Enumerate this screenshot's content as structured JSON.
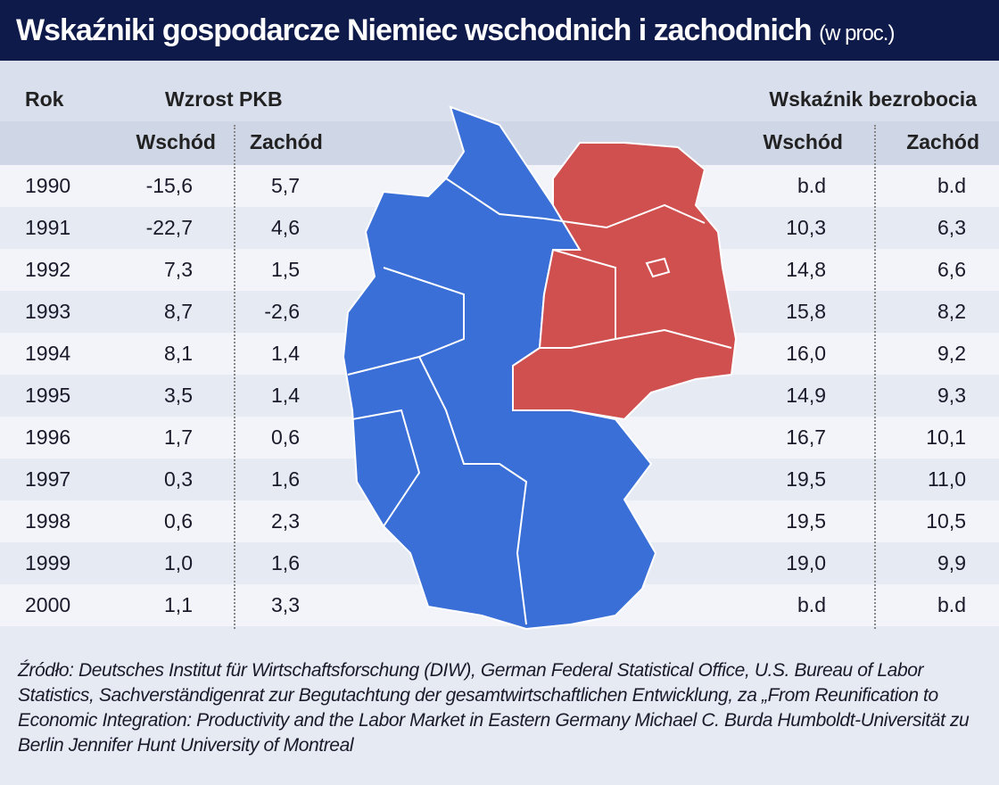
{
  "header": {
    "title": "Wskaźniki gospodarcze Niemiec wschodnich i zachodnich",
    "unit": "(w proc.)"
  },
  "table": {
    "col_year": "Rok",
    "group_gdp": "Wzrost PKB",
    "group_unemployment": "Wskaźnik bezrobocia",
    "sub_columns": [
      "Wschód",
      "Zachód",
      "Wschód",
      "Zachód"
    ],
    "rows": [
      [
        "1990",
        "-15,6",
        "5,7",
        "b.d",
        "b.d"
      ],
      [
        "1991",
        "-22,7",
        "4,6",
        "10,3",
        "6,3"
      ],
      [
        "1992",
        "7,3",
        "1,5",
        "14,8",
        "6,6"
      ],
      [
        "1993",
        "8,7",
        "-2,6",
        "15,8",
        "8,2"
      ],
      [
        "1994",
        "8,1",
        "1,4",
        "16,0",
        "9,2"
      ],
      [
        "1995",
        "3,5",
        "1,4",
        "14,9",
        "9,3"
      ],
      [
        "1996",
        "1,7",
        "0,6",
        "16,7",
        "10,1"
      ],
      [
        "1997",
        "0,3",
        "1,6",
        "19,5",
        "11,0"
      ],
      [
        "1998",
        "0,6",
        "2,3",
        "19,5",
        "10,5"
      ],
      [
        "1999",
        "1,0",
        "1,6",
        "19,0",
        "9,9"
      ],
      [
        "2000",
        "1,1",
        "3,3",
        "b.d",
        "b.d"
      ]
    ]
  },
  "source": "Źródło: Deutsches Institut für Wirtschaftsforschung (DIW), German Federal Statistical Office, U.S. Bureau of Labor Statistics, Sachverständigenrat zur Begutachtung der gesamtwirtschaftlichen Entwicklung, za „From Reunification to Economic Integration: Productivity and the Labor Market in Eastern Germany Michael C. Burda Humboldt-Universität zu Berlin Jennifer Hunt University of Montreal"
}
